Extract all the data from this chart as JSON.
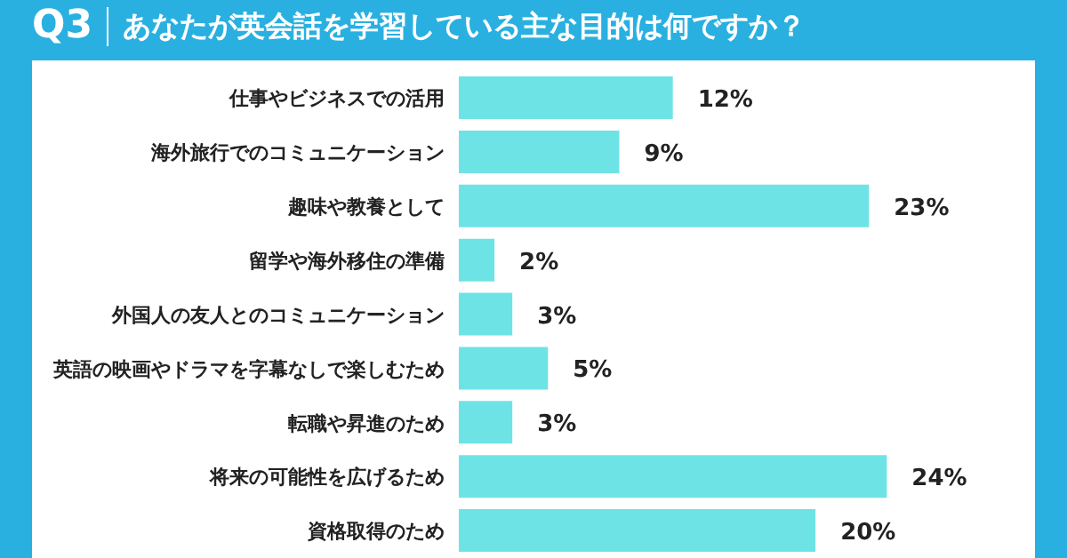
{
  "chart_data": {
    "type": "bar",
    "orientation": "horizontal",
    "title": "あなたが英会話を学習している主な目的は何ですか？",
    "annotations": [
      "Q3"
    ],
    "categories": [
      "仕事やビジネスでの活用",
      "海外旅行でのコミュニケーション",
      "趣味や教養として",
      "留学や海外移住の準備",
      "外国人の友人とのコミュニケーション",
      "英語の映画やドラマを字幕なしで楽しむため",
      "転職や昇進のため",
      "将来の可能性を広げるため",
      "資格取得のため"
    ],
    "values": [
      12,
      9,
      23,
      2,
      3,
      5,
      3,
      24,
      20
    ],
    "value_labels": [
      "12%",
      "9%",
      "23%",
      "2%",
      "3%",
      "5%",
      "3%",
      "24%",
      "20%"
    ],
    "color": "#6ee3e6"
  }
}
